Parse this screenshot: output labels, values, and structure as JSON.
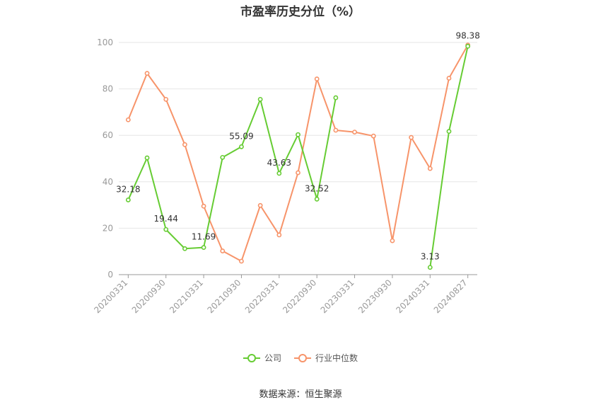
{
  "chart_data": {
    "type": "line",
    "title": "市盈率历史分位（%）",
    "x": [
      "20200331",
      "20200630",
      "20200930",
      "20201231",
      "20210331",
      "20210630",
      "20210930",
      "20211231",
      "20220331",
      "20220630",
      "20220930",
      "20221231",
      "20230331",
      "20230630",
      "20230930",
      "20231231",
      "20240331",
      "20240630",
      "20240827"
    ],
    "x_tick_labels": [
      "20200331",
      "20200930",
      "20210331",
      "20210930",
      "20220331",
      "20220930",
      "20230331",
      "20230930",
      "20240331",
      "20240827"
    ],
    "ylim": [
      0,
      100
    ],
    "y_ticks": [
      0,
      20,
      40,
      60,
      80,
      100
    ],
    "grid": true,
    "legend_position": "bottom",
    "series": [
      {
        "name": "公司",
        "color": "#66cc33",
        "values": [
          32.18,
          50.3,
          19.44,
          11.2,
          11.69,
          50.5,
          55.09,
          75.5,
          43.63,
          60.3,
          32.52,
          76.2,
          null,
          null,
          null,
          null,
          3.13,
          61.7,
          98.38
        ],
        "data_labels": {
          "0": "32.18",
          "2": "19.44",
          "4": "11.69",
          "6": "55.09",
          "8": "43.63",
          "10": "32.52",
          "16": "3.13",
          "18": "98.38"
        }
      },
      {
        "name": "行业中位数",
        "color": "#f7946a",
        "values": [
          66.7,
          86.7,
          75.5,
          56.0,
          29.5,
          10.2,
          5.8,
          29.8,
          17.1,
          43.9,
          84.3,
          62.2,
          61.4,
          59.7,
          14.6,
          59.1,
          45.7,
          84.6,
          98.9
        ]
      }
    ]
  },
  "source_text": "数据来源：恒生聚源"
}
